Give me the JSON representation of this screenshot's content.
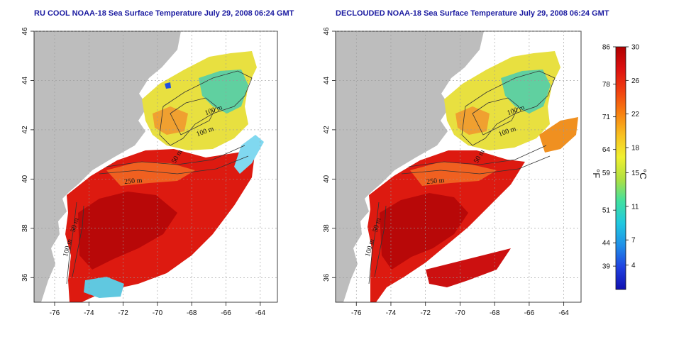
{
  "maps": [
    {
      "id": "left",
      "title": "RU COOL NOAA-18 Sea Surface Temperature July 29, 2008 06:24 GMT",
      "lon_ticks": [
        "-76",
        "-74",
        "-72",
        "-70",
        "-68",
        "-66",
        "-64"
      ],
      "lat_ticks": [
        "46",
        "44",
        "42",
        "40",
        "38",
        "36"
      ],
      "contour_labels": [
        "100 m",
        "100 m",
        "50 m",
        "250 m",
        "50 m",
        "100 m"
      ],
      "cloud_mask": "heavy"
    },
    {
      "id": "right",
      "title": "DECLOUDED NOAA-18 Sea Surface Temperature July 29, 2008 06:24 GMT",
      "lon_ticks": [
        "-76",
        "-74",
        "-72",
        "-70",
        "-68",
        "-66",
        "-64"
      ],
      "lat_ticks": [
        "46",
        "44",
        "42",
        "40",
        "38",
        "36"
      ],
      "contour_labels": [
        "100 m",
        "100 m",
        "50 m",
        "250 m",
        "50 m",
        "100 m"
      ],
      "cloud_mask": "decloud"
    }
  ],
  "extent": {
    "lon_min": -77.2,
    "lon_max": -63,
    "lat_min": 35,
    "lat_max": 46
  },
  "colorbar": {
    "f_ticks": [
      "86",
      "78",
      "71",
      "64",
      "59",
      "51",
      "44",
      "39"
    ],
    "c_ticks": [
      "30",
      "26",
      "22",
      "18",
      "15",
      "11",
      "7",
      "4"
    ],
    "f_unit": "°F",
    "c_unit": "°C",
    "colors": [
      "#b00000",
      "#dd1010",
      "#f04010",
      "#f88010",
      "#f8c020",
      "#f0f030",
      "#b0e040",
      "#40e0a0",
      "#20c8e0",
      "#2090e8",
      "#2040e0",
      "#1010b0"
    ]
  },
  "legend_colors": {
    "land": "#bdbdbd",
    "cloud": "#ffffff",
    "coastline": "#222222",
    "contours": "#333333",
    "grid": "#aaaaaa"
  }
}
